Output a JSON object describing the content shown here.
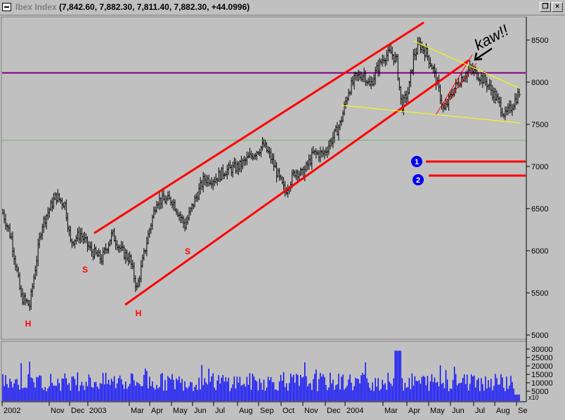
{
  "window": {
    "title_name": "Ibex Index",
    "title_values": " (7,842.60, 7,882.30, 7,811.40, 7,882.30, +44.0996)",
    "restore_label": "❐",
    "close_label": "×",
    "icon": "system-menu-icon"
  },
  "colors": {
    "background": "#c0c0c0",
    "price_bars": "#000000",
    "volume_bars": "#0000ff",
    "channel": "#ff0000",
    "resistance": "#800080",
    "support_green": "#66bb66",
    "wedge": "#ffff00",
    "marker_blue": "#0000ee"
  },
  "chart_data": [
    {
      "type": "ohlc",
      "series_name": "Ibex Index",
      "y_ticks": [
        "8500",
        "8000",
        "7500",
        "7000",
        "6500",
        "6000",
        "5500",
        "5000"
      ],
      "ylim": [
        5000,
        8700
      ],
      "x_ticks": [
        "2002",
        "Nov",
        "Dec",
        "2003",
        "Mar",
        "Apr",
        "May",
        "Jun",
        "Jul",
        "Aug",
        "Sep",
        "Oct",
        "Nov",
        "Dec",
        "2004",
        "Mar",
        "Apr",
        "May",
        "Jun",
        "Jul",
        "Aug",
        "Se"
      ],
      "close_path": [
        {
          "i": 0,
          "v": 6450
        },
        {
          "i": 12,
          "v": 6150
        },
        {
          "i": 26,
          "v": 5450
        },
        {
          "i": 38,
          "v": 5350
        },
        {
          "i": 55,
          "v": 6300
        },
        {
          "i": 75,
          "v": 6650
        },
        {
          "i": 88,
          "v": 6550
        },
        {
          "i": 96,
          "v": 6100
        },
        {
          "i": 110,
          "v": 6200
        },
        {
          "i": 125,
          "v": 6000
        },
        {
          "i": 140,
          "v": 5900
        },
        {
          "i": 155,
          "v": 6200
        },
        {
          "i": 168,
          "v": 6000
        },
        {
          "i": 180,
          "v": 5900
        },
        {
          "i": 190,
          "v": 5550
        },
        {
          "i": 205,
          "v": 6150
        },
        {
          "i": 218,
          "v": 6600
        },
        {
          "i": 240,
          "v": 6600
        },
        {
          "i": 258,
          "v": 6300
        },
        {
          "i": 272,
          "v": 6600
        },
        {
          "i": 285,
          "v": 6850
        },
        {
          "i": 300,
          "v": 6850
        },
        {
          "i": 315,
          "v": 6950
        },
        {
          "i": 335,
          "v": 7000
        },
        {
          "i": 355,
          "v": 7150
        },
        {
          "i": 370,
          "v": 7250
        },
        {
          "i": 380,
          "v": 7100
        },
        {
          "i": 392,
          "v": 6850
        },
        {
          "i": 400,
          "v": 6700
        },
        {
          "i": 415,
          "v": 6950
        },
        {
          "i": 425,
          "v": 6900
        },
        {
          "i": 440,
          "v": 7150
        },
        {
          "i": 455,
          "v": 7150
        },
        {
          "i": 465,
          "v": 7300
        },
        {
          "i": 478,
          "v": 7500
        },
        {
          "i": 490,
          "v": 7900
        },
        {
          "i": 500,
          "v": 8050
        },
        {
          "i": 512,
          "v": 8100
        },
        {
          "i": 520,
          "v": 7950
        },
        {
          "i": 530,
          "v": 8150
        },
        {
          "i": 540,
          "v": 8300
        },
        {
          "i": 550,
          "v": 8350
        },
        {
          "i": 558,
          "v": 8250
        },
        {
          "i": 565,
          "v": 7700
        },
        {
          "i": 575,
          "v": 7900
        },
        {
          "i": 582,
          "v": 8300
        },
        {
          "i": 590,
          "v": 8450
        },
        {
          "i": 600,
          "v": 8350
        },
        {
          "i": 610,
          "v": 8150
        },
        {
          "i": 618,
          "v": 7900
        },
        {
          "i": 625,
          "v": 7650
        },
        {
          "i": 638,
          "v": 7900
        },
        {
          "i": 650,
          "v": 8050
        },
        {
          "i": 662,
          "v": 8150
        },
        {
          "i": 672,
          "v": 8100
        },
        {
          "i": 685,
          "v": 8000
        },
        {
          "i": 700,
          "v": 7800
        },
        {
          "i": 712,
          "v": 7600
        },
        {
          "i": 720,
          "v": 7700
        },
        {
          "i": 732,
          "v": 7880
        }
      ],
      "reference_lines": [
        {
          "name": "purple-resistance",
          "y": 8110
        },
        {
          "name": "green-support",
          "y": 7310
        }
      ],
      "annotations": [
        {
          "text": "H",
          "role": "left-shoulder"
        },
        {
          "text": "S",
          "role": "left-shoulder"
        },
        {
          "text": "H",
          "role": "head"
        },
        {
          "text": "S",
          "role": "right-shoulder"
        },
        {
          "text": "kaw!!",
          "role": "handwritten-note"
        },
        {
          "text": "1",
          "role": "target-1",
          "y": 7050
        },
        {
          "text": "2",
          "role": "target-2",
          "y": 6880
        }
      ]
    },
    {
      "type": "bar",
      "series_name": "Volume",
      "y_ticks": [
        "30000",
        "25000",
        "20000",
        "15000",
        "10000",
        "5000"
      ],
      "ylim": [
        0,
        32000
      ],
      "multiplier_label": "x10"
    }
  ]
}
